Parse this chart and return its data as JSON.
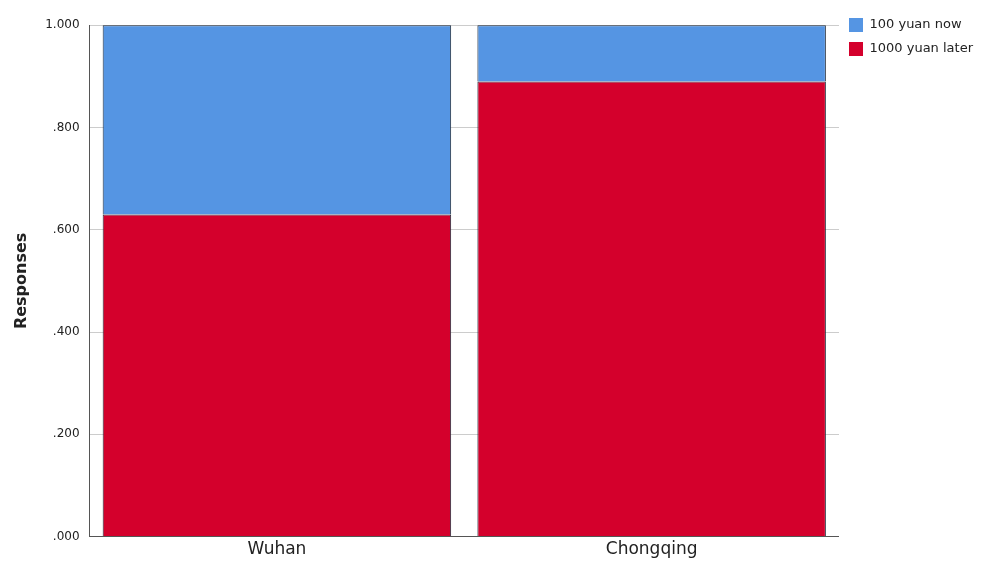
{
  "chart_data": {
    "type": "bar",
    "ylabel": "Responses",
    "categories": [
      "Wuhan",
      "Chongqing"
    ],
    "stacked": true,
    "series": [
      {
        "name": "1000 yuan later",
        "color": "#d4002c",
        "values": [
          0.63,
          0.89
        ]
      },
      {
        "name": "100 yuan now",
        "color": "#5595e3",
        "values": [
          0.37,
          0.11
        ]
      }
    ],
    "ylim": [
      0,
      1
    ],
    "yticks": [
      {
        "value": 0,
        "label": ".000"
      },
      {
        "value": 0.2,
        "label": ".200"
      },
      {
        "value": 0.4,
        "label": ".400"
      },
      {
        "value": 0.6,
        "label": ".600"
      },
      {
        "value": 0.8,
        "label": ".800"
      },
      {
        "value": 1,
        "label": "1.000"
      }
    ],
    "grid": "y",
    "legend": "top right"
  }
}
